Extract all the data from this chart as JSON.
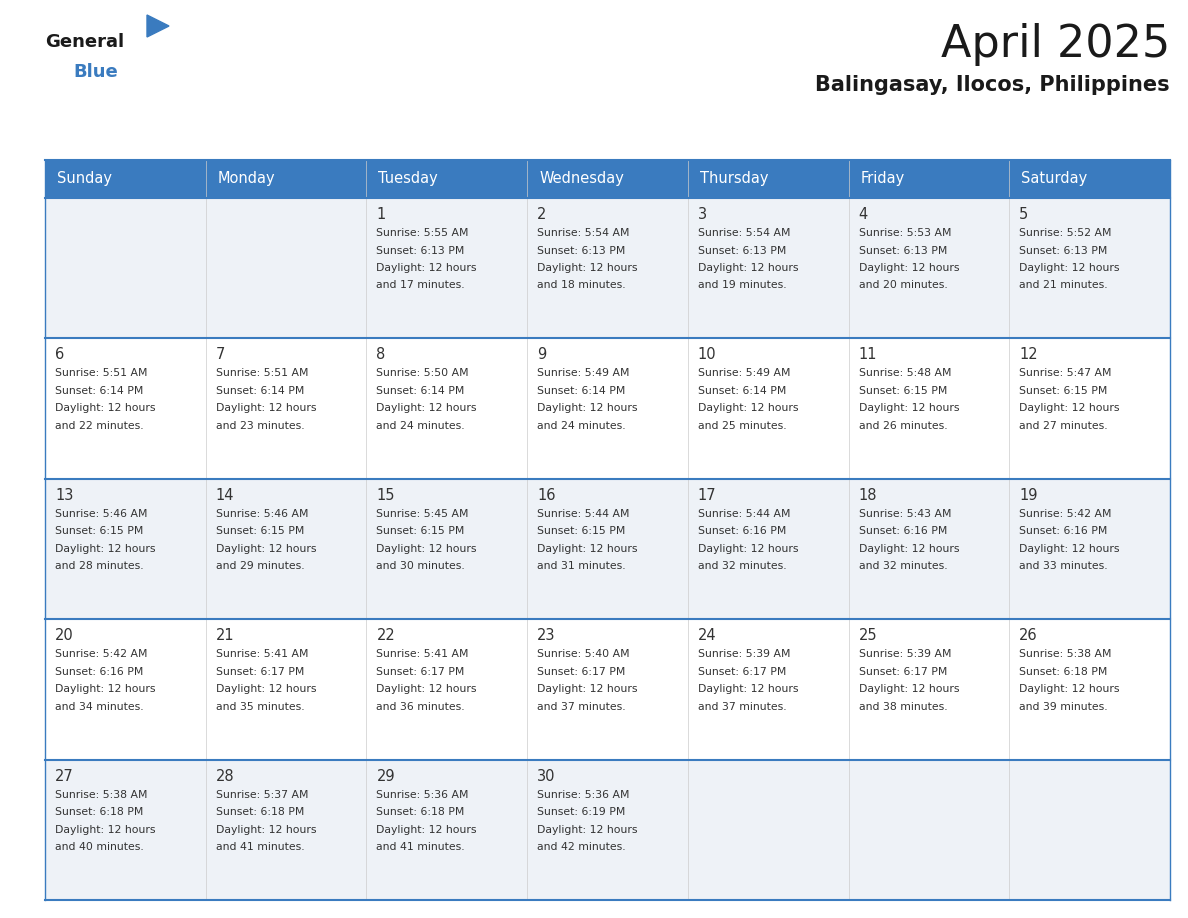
{
  "title": "April 2025",
  "subtitle": "Balingasay, Ilocos, Philippines",
  "header_bg": "#3a7bbf",
  "header_text": "#ffffff",
  "cell_bg_odd": "#eef2f7",
  "cell_bg_even": "#ffffff",
  "border_color": "#3a7bbf",
  "text_color": "#333333",
  "days_of_week": [
    "Sunday",
    "Monday",
    "Tuesday",
    "Wednesday",
    "Thursday",
    "Friday",
    "Saturday"
  ],
  "calendar": [
    [
      {
        "day": "",
        "lines": []
      },
      {
        "day": "",
        "lines": []
      },
      {
        "day": "1",
        "lines": [
          "Sunrise: 5:55 AM",
          "Sunset: 6:13 PM",
          "Daylight: 12 hours",
          "and 17 minutes."
        ]
      },
      {
        "day": "2",
        "lines": [
          "Sunrise: 5:54 AM",
          "Sunset: 6:13 PM",
          "Daylight: 12 hours",
          "and 18 minutes."
        ]
      },
      {
        "day": "3",
        "lines": [
          "Sunrise: 5:54 AM",
          "Sunset: 6:13 PM",
          "Daylight: 12 hours",
          "and 19 minutes."
        ]
      },
      {
        "day": "4",
        "lines": [
          "Sunrise: 5:53 AM",
          "Sunset: 6:13 PM",
          "Daylight: 12 hours",
          "and 20 minutes."
        ]
      },
      {
        "day": "5",
        "lines": [
          "Sunrise: 5:52 AM",
          "Sunset: 6:13 PM",
          "Daylight: 12 hours",
          "and 21 minutes."
        ]
      }
    ],
    [
      {
        "day": "6",
        "lines": [
          "Sunrise: 5:51 AM",
          "Sunset: 6:14 PM",
          "Daylight: 12 hours",
          "and 22 minutes."
        ]
      },
      {
        "day": "7",
        "lines": [
          "Sunrise: 5:51 AM",
          "Sunset: 6:14 PM",
          "Daylight: 12 hours",
          "and 23 minutes."
        ]
      },
      {
        "day": "8",
        "lines": [
          "Sunrise: 5:50 AM",
          "Sunset: 6:14 PM",
          "Daylight: 12 hours",
          "and 24 minutes."
        ]
      },
      {
        "day": "9",
        "lines": [
          "Sunrise: 5:49 AM",
          "Sunset: 6:14 PM",
          "Daylight: 12 hours",
          "and 24 minutes."
        ]
      },
      {
        "day": "10",
        "lines": [
          "Sunrise: 5:49 AM",
          "Sunset: 6:14 PM",
          "Daylight: 12 hours",
          "and 25 minutes."
        ]
      },
      {
        "day": "11",
        "lines": [
          "Sunrise: 5:48 AM",
          "Sunset: 6:15 PM",
          "Daylight: 12 hours",
          "and 26 minutes."
        ]
      },
      {
        "day": "12",
        "lines": [
          "Sunrise: 5:47 AM",
          "Sunset: 6:15 PM",
          "Daylight: 12 hours",
          "and 27 minutes."
        ]
      }
    ],
    [
      {
        "day": "13",
        "lines": [
          "Sunrise: 5:46 AM",
          "Sunset: 6:15 PM",
          "Daylight: 12 hours",
          "and 28 minutes."
        ]
      },
      {
        "day": "14",
        "lines": [
          "Sunrise: 5:46 AM",
          "Sunset: 6:15 PM",
          "Daylight: 12 hours",
          "and 29 minutes."
        ]
      },
      {
        "day": "15",
        "lines": [
          "Sunrise: 5:45 AM",
          "Sunset: 6:15 PM",
          "Daylight: 12 hours",
          "and 30 minutes."
        ]
      },
      {
        "day": "16",
        "lines": [
          "Sunrise: 5:44 AM",
          "Sunset: 6:15 PM",
          "Daylight: 12 hours",
          "and 31 minutes."
        ]
      },
      {
        "day": "17",
        "lines": [
          "Sunrise: 5:44 AM",
          "Sunset: 6:16 PM",
          "Daylight: 12 hours",
          "and 32 minutes."
        ]
      },
      {
        "day": "18",
        "lines": [
          "Sunrise: 5:43 AM",
          "Sunset: 6:16 PM",
          "Daylight: 12 hours",
          "and 32 minutes."
        ]
      },
      {
        "day": "19",
        "lines": [
          "Sunrise: 5:42 AM",
          "Sunset: 6:16 PM",
          "Daylight: 12 hours",
          "and 33 minutes."
        ]
      }
    ],
    [
      {
        "day": "20",
        "lines": [
          "Sunrise: 5:42 AM",
          "Sunset: 6:16 PM",
          "Daylight: 12 hours",
          "and 34 minutes."
        ]
      },
      {
        "day": "21",
        "lines": [
          "Sunrise: 5:41 AM",
          "Sunset: 6:17 PM",
          "Daylight: 12 hours",
          "and 35 minutes."
        ]
      },
      {
        "day": "22",
        "lines": [
          "Sunrise: 5:41 AM",
          "Sunset: 6:17 PM",
          "Daylight: 12 hours",
          "and 36 minutes."
        ]
      },
      {
        "day": "23",
        "lines": [
          "Sunrise: 5:40 AM",
          "Sunset: 6:17 PM",
          "Daylight: 12 hours",
          "and 37 minutes."
        ]
      },
      {
        "day": "24",
        "lines": [
          "Sunrise: 5:39 AM",
          "Sunset: 6:17 PM",
          "Daylight: 12 hours",
          "and 37 minutes."
        ]
      },
      {
        "day": "25",
        "lines": [
          "Sunrise: 5:39 AM",
          "Sunset: 6:17 PM",
          "Daylight: 12 hours",
          "and 38 minutes."
        ]
      },
      {
        "day": "26",
        "lines": [
          "Sunrise: 5:38 AM",
          "Sunset: 6:18 PM",
          "Daylight: 12 hours",
          "and 39 minutes."
        ]
      }
    ],
    [
      {
        "day": "27",
        "lines": [
          "Sunrise: 5:38 AM",
          "Sunset: 6:18 PM",
          "Daylight: 12 hours",
          "and 40 minutes."
        ]
      },
      {
        "day": "28",
        "lines": [
          "Sunrise: 5:37 AM",
          "Sunset: 6:18 PM",
          "Daylight: 12 hours",
          "and 41 minutes."
        ]
      },
      {
        "day": "29",
        "lines": [
          "Sunrise: 5:36 AM",
          "Sunset: 6:18 PM",
          "Daylight: 12 hours",
          "and 41 minutes."
        ]
      },
      {
        "day": "30",
        "lines": [
          "Sunrise: 5:36 AM",
          "Sunset: 6:19 PM",
          "Daylight: 12 hours",
          "and 42 minutes."
        ]
      },
      {
        "day": "",
        "lines": []
      },
      {
        "day": "",
        "lines": []
      },
      {
        "day": "",
        "lines": []
      }
    ]
  ]
}
